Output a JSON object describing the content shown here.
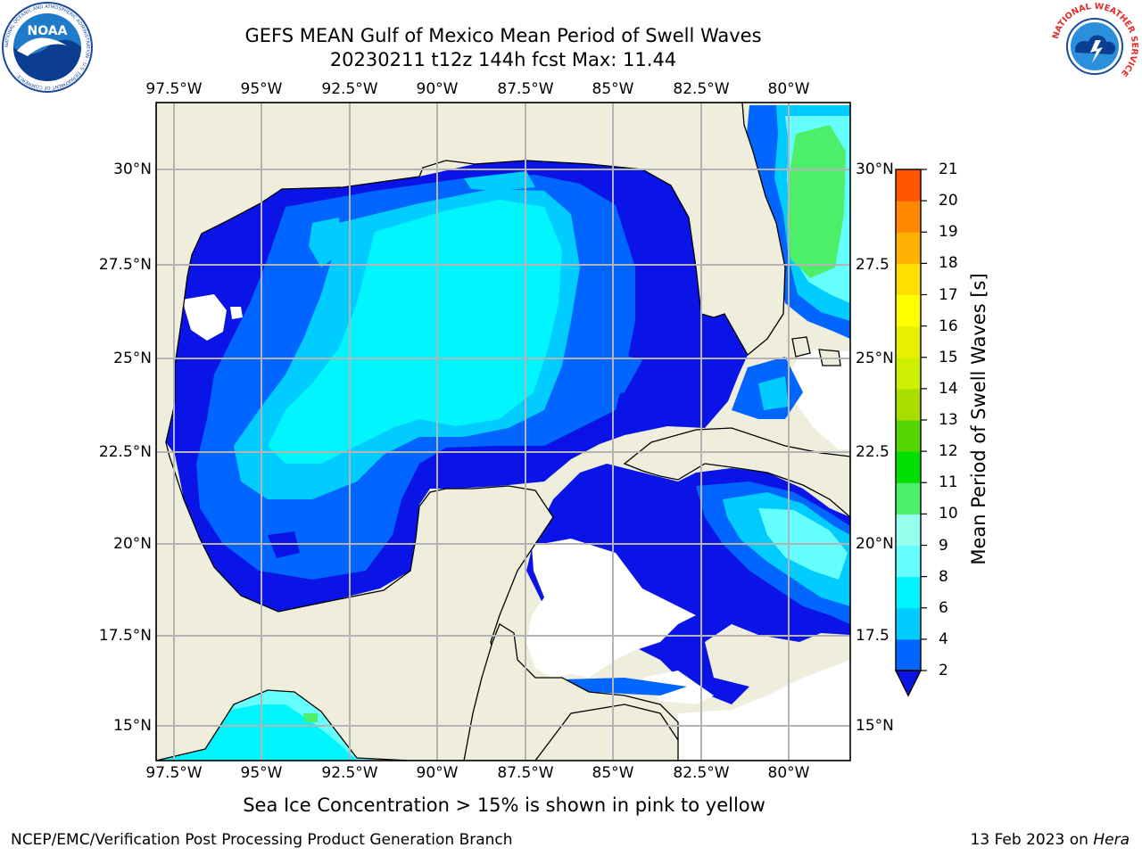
{
  "title_line1": "GEFS MEAN Gulf of Mexico Mean Period of Swell Waves",
  "title_line2": "20230211 t12z 144h fcst   Max: 11.44",
  "lon_ticks": [
    "97.5°W",
    "95°W",
    "92.5°W",
    "90°W",
    "87.5°W",
    "85°W",
    "82.5°W",
    "80°W"
  ],
  "lat_ticks_left": [
    "30°N",
    "27.5°N",
    "25°N",
    "22.5°N",
    "20°N",
    "17.5°N",
    "15°N"
  ],
  "lat_ticks_right": [
    "30°N",
    "27.5",
    "25°N",
    "22.5",
    "20°N",
    "17.5",
    "15°N"
  ],
  "colorbar": {
    "label": "Mean Period of Swell Waves [s]",
    "ticks": [
      "2",
      "4",
      "6",
      "8",
      "9",
      "10",
      "11",
      "12",
      "13",
      "14",
      "15",
      "16",
      "17",
      "18",
      "19",
      "20",
      "21"
    ],
    "colors": [
      "#0066ff",
      "#00ccff",
      "#00f5ff",
      "#66ffff",
      "#99ffee",
      "#4cee6a",
      "#00e000",
      "#55d400",
      "#aadd00",
      "#ccf000",
      "#e6f000",
      "#ffff00",
      "#ffe000",
      "#ffb000",
      "#ff8800",
      "#ff5500",
      "#ff2a00",
      "#ff0000"
    ],
    "extend_color": "#0a14e6"
  },
  "caption": "Sea Ice Concentration > 15% is shown in pink to yellow",
  "footer_left": "NCEP/EMC/Verification Post Processing Product Generation Branch",
  "footer_right_prefix": "13 Feb 2023 on ",
  "footer_right_host": "Hera",
  "logos": {
    "noaa_text": "NOAA",
    "noaa_ring": "NATIONAL OCEANIC AND ATMOSPHERIC ADMINISTRATION · U.S. DEPARTMENT OF COMMERCE",
    "nws_ring": "NATIONAL WEATHER SERVICE"
  },
  "colors": {
    "land": "#efeddc",
    "coast": "#000000",
    "grid": "#b4b4b4"
  }
}
